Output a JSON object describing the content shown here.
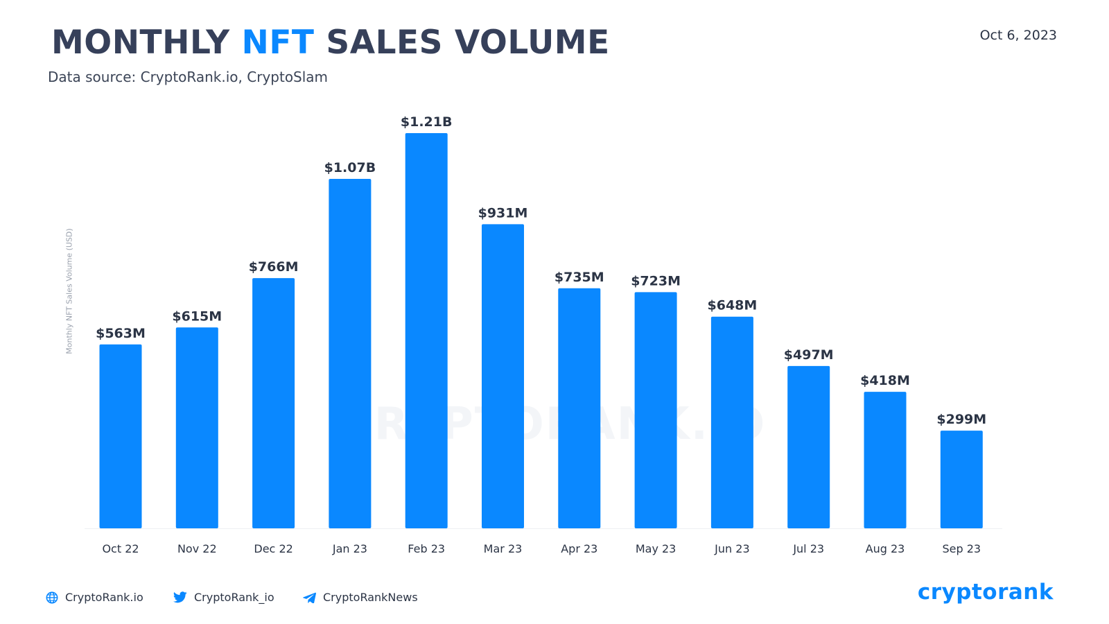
{
  "header": {
    "title_before": "MONTHLY ",
    "title_accent": "NFT",
    "title_after": " SALES VOLUME",
    "subtitle": "Data source: CryptoRank.io, CryptoSlam",
    "date": "Oct 6, 2023"
  },
  "watermark": "CRYPTORANK.IO",
  "colors": {
    "bar": "#0a88ff",
    "accent": "#0a88ff",
    "text": "#2b3445"
  },
  "chart_data": {
    "type": "bar",
    "title": "MONTHLY NFT SALES VOLUME",
    "xlabel": "",
    "ylabel": "Monthly NFT Sales Volume (USD)",
    "categories": [
      "Oct 22",
      "Nov 22",
      "Dec 22",
      "Jan 23",
      "Feb 23",
      "Mar 23",
      "Apr 23",
      "May 23",
      "Jun 23",
      "Jul 23",
      "Aug 23",
      "Sep 23"
    ],
    "values": [
      563,
      615,
      766,
      1070,
      1210,
      931,
      735,
      723,
      648,
      497,
      418,
      299
    ],
    "value_unit": "USD millions",
    "data_labels": [
      "$563M",
      "$615M",
      "$766M",
      "$1.07B",
      "$1.21B",
      "$931M",
      "$735M",
      "$723M",
      "$648M",
      "$497M",
      "$418M",
      "$299M"
    ],
    "ylim": [
      0,
      1210
    ],
    "grid": false,
    "legend": "none"
  },
  "footer": {
    "website": "CryptoRank.io",
    "twitter": "CryptoRank_io",
    "telegram": "CryptoRankNews",
    "brand": "cryptorank",
    "icons": [
      "globe-icon",
      "twitter-icon",
      "telegram-icon"
    ]
  }
}
